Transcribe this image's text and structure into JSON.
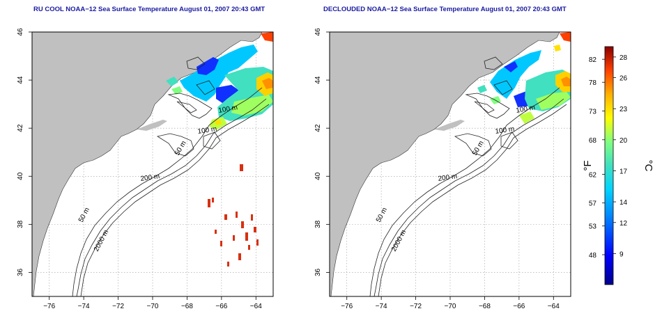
{
  "panels": [
    {
      "title": "RU COOL NOAA−12 Sea Surface Temperature August 01, 2007 20:43 GMT",
      "contour_labels": [
        "100 m",
        "100 m",
        "50 m",
        "200 m",
        "50 m",
        "2000 m"
      ]
    },
    {
      "title": "DECLOUDED NOAA−12 Sea Surface Temperature August 01, 2007 20:43 GMT",
      "contour_labels": [
        "100 m",
        "100 m",
        "50 m",
        "200 m",
        "50 m",
        "2000 m"
      ]
    }
  ],
  "map_axes": {
    "lon_ticks": [
      "−76",
      "−74",
      "−72",
      "−70",
      "−68",
      "−66",
      "−64"
    ],
    "lat_ticks": [
      "36",
      "38",
      "40",
      "42",
      "44",
      "46"
    ],
    "lon_range": [
      -77,
      -63
    ],
    "lat_range": [
      35,
      46
    ],
    "grid": "dotted"
  },
  "colorbar": {
    "f_label": "°F",
    "c_label": "°C",
    "f_ticks": [
      "48",
      "53",
      "57",
      "62",
      "68",
      "73",
      "78",
      "82"
    ],
    "c_ticks": [
      "9",
      "12",
      "14",
      "17",
      "20",
      "23",
      "26",
      "28"
    ],
    "f_values": [
      48,
      53,
      57,
      62,
      68,
      73,
      78,
      82
    ],
    "c_values": [
      9,
      12,
      14,
      17,
      20,
      23,
      26,
      28
    ],
    "c_range": [
      6,
      29
    ],
    "colors": [
      "#00008b",
      "#0000ff",
      "#0080ff",
      "#00d4ff",
      "#40e0c0",
      "#80ff80",
      "#ffff00",
      "#ffb000",
      "#ff4000",
      "#8b0000"
    ]
  },
  "colors": {
    "land": "#c0c0c0",
    "water": "#ffffff",
    "title": "#1a1aa0"
  }
}
